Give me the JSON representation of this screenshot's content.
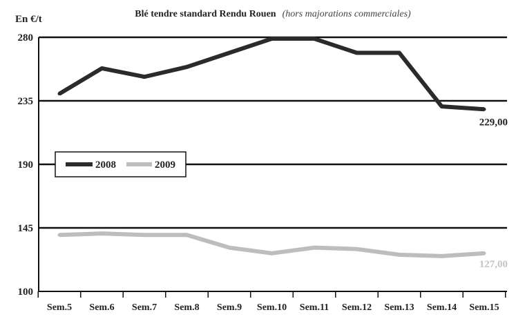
{
  "chart_data": {
    "type": "line",
    "title": "Blé tendre standard Rendu Rouen",
    "subtitle": "(hors majorations commerciales)",
    "ylabel": "En €/t",
    "xlabel": "",
    "categories": [
      "Sem.5",
      "Sem.6",
      "Sem.7",
      "Sem.8",
      "Sem.9",
      "Sem.10",
      "Sem.11",
      "Sem.12",
      "Sem.13",
      "Sem.14",
      "Sem.15"
    ],
    "ylim": [
      100,
      280
    ],
    "yticks": [
      "100",
      "145",
      "190",
      "235",
      "280"
    ],
    "grid": "horizontal",
    "legend_position": "left",
    "series": [
      {
        "name": "2008",
        "color": "#2b2b2b",
        "values": [
          240,
          258,
          252,
          259,
          269,
          279,
          279,
          269,
          269,
          231,
          229
        ],
        "end_label": "229,00"
      },
      {
        "name": "2009",
        "color": "#bdbdbd",
        "values": [
          140,
          141,
          140,
          140,
          131,
          127,
          131,
          130,
          126,
          125,
          127
        ],
        "end_label": "127,00"
      }
    ]
  }
}
